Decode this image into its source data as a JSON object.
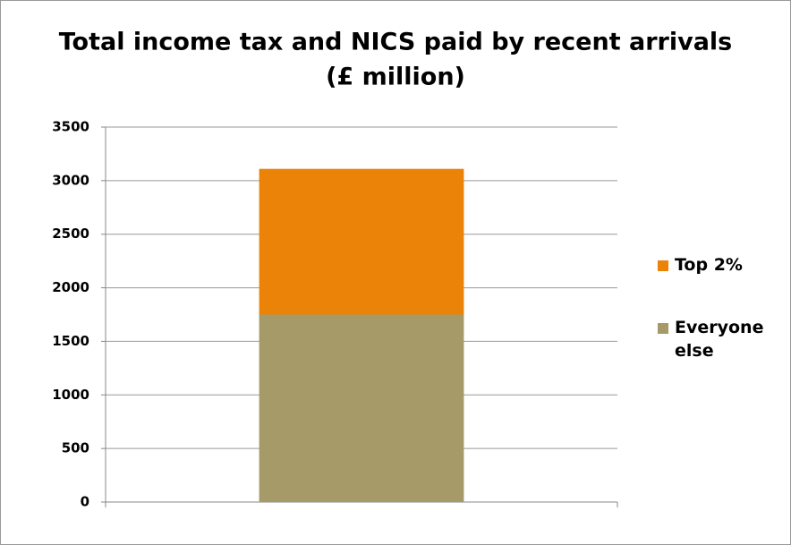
{
  "chart_data": {
    "type": "stacked-bar",
    "title": "Total income tax and NICS paid by recent arrivals",
    "subtitle": "(£ million)",
    "categories": [
      null
    ],
    "series": [
      {
        "name": "Everyone else",
        "color": "#a59a68",
        "values": [
          1750
        ]
      },
      {
        "name": "Top 2%",
        "color": "#ea8307",
        "values": [
          1360
        ]
      }
    ],
    "ylim": [
      0,
      3500
    ],
    "yticks": [
      0,
      500,
      1000,
      1500,
      2000,
      2500,
      3000,
      3500
    ],
    "grid": true,
    "legend": "right"
  }
}
